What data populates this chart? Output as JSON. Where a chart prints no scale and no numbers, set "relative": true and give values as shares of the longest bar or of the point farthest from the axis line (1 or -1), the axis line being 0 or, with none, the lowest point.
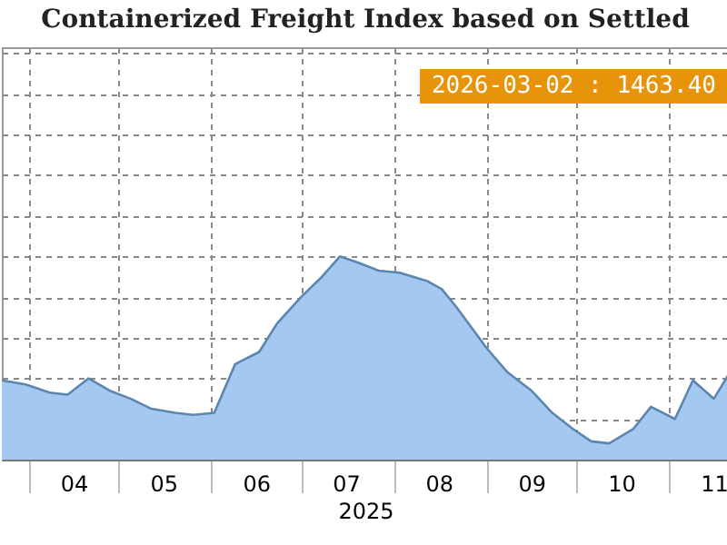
{
  "chart_data": {
    "type": "area",
    "title": "Containerized Freight Index based on Settled",
    "xlabel": "2025",
    "relative": true,
    "grid": true,
    "annotations": [
      "2026-03-02 : 1463.40"
    ],
    "x": [
      "2025-03-23",
      "2025-03-31",
      "2025-04-08",
      "2025-04-14",
      "2025-04-21",
      "2025-04-28",
      "2025-05-05",
      "2025-05-12",
      "2025-05-20",
      "2025-05-26",
      "2025-06-02",
      "2025-06-09",
      "2025-06-17",
      "2025-06-23",
      "2025-07-01",
      "2025-07-08",
      "2025-07-14",
      "2025-07-20",
      "2025-07-27",
      "2025-08-03",
      "2025-08-12",
      "2025-08-17",
      "2025-08-22",
      "2025-09-01",
      "2025-09-08",
      "2025-09-16",
      "2025-09-23",
      "2025-09-30",
      "2025-10-06",
      "2025-10-12",
      "2025-10-20",
      "2025-10-26",
      "2025-11-03",
      "2025-11-09",
      "2025-11-16",
      "2025-11-21"
    ],
    "xlim": [
      "2025-03-23",
      "2025-11-21"
    ],
    "xticks": [
      {
        "value": "2025-04-01",
        "label": null
      },
      {
        "value": "2025-04-16",
        "label": "04"
      },
      {
        "value": "2025-05-01",
        "label": null
      },
      {
        "value": "2025-05-16",
        "label": "05"
      },
      {
        "value": "2025-06-01",
        "label": null
      },
      {
        "value": "2025-06-16",
        "label": "06"
      },
      {
        "value": "2025-07-01",
        "label": null
      },
      {
        "value": "2025-07-16",
        "label": "07"
      },
      {
        "value": "2025-08-01",
        "label": null
      },
      {
        "value": "2025-08-16",
        "label": "08"
      },
      {
        "value": "2025-09-01",
        "label": null
      },
      {
        "value": "2025-09-16",
        "label": "09"
      },
      {
        "value": "2025-10-01",
        "label": null
      },
      {
        "value": "2025-10-16",
        "label": "10"
      },
      {
        "value": "2025-11-01",
        "label": null
      },
      {
        "value": "2025-11-16",
        "label": "11"
      }
    ],
    "series": [
      {
        "color": "#a5c8f0",
        "values": [
          0.39,
          0.37,
          0.33,
          0.32,
          0.4,
          0.34,
          0.3,
          0.25,
          0.23,
          0.22,
          0.23,
          0.47,
          0.53,
          0.67,
          0.8,
          0.9,
          1,
          0.97,
          0.93,
          0.92,
          0.88,
          0.84,
          0.75,
          0.55,
          0.43,
          0.34,
          0.23,
          0.15,
          0.09,
          0.08,
          0.15,
          0.26,
          0.2,
          0.39,
          0.3,
          0.42
        ]
      }
    ]
  }
}
